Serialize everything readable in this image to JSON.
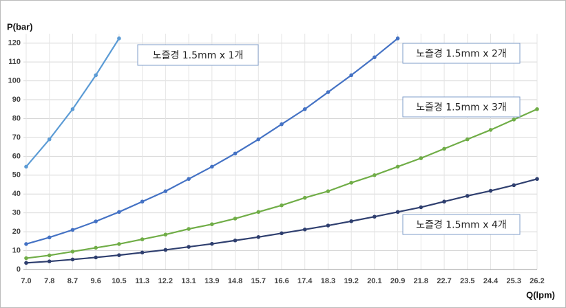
{
  "chart_data": {
    "type": "line",
    "y_label": "P(bar)",
    "x_label": "Q(lpm)",
    "categories": [
      "7.0",
      "7.8",
      "8.7",
      "9.6",
      "10.5",
      "11.3",
      "12.2",
      "13.1",
      "13.9",
      "14.8",
      "15.7",
      "16.6",
      "17.4",
      "18.3",
      "19.2",
      "20.1",
      "20.9",
      "21.8",
      "22.7",
      "23.5",
      "24.4",
      "25.3",
      "26.2"
    ],
    "series": [
      {
        "name": "노즐경 1.5mm x 1개",
        "color": "#5b9bd5",
        "values": [
          54.5,
          69,
          85,
          103,
          122.5,
          null,
          null,
          null,
          null,
          null,
          null,
          null,
          null,
          null,
          null,
          null,
          null,
          null,
          null,
          null,
          null,
          null,
          null
        ]
      },
      {
        "name": "노즐경 1.5mm x 2개",
        "color": "#4472c4",
        "values": [
          13.5,
          17,
          21,
          25.5,
          30.5,
          36,
          41.5,
          48,
          54.5,
          61.5,
          69,
          77,
          85,
          94,
          103,
          112.5,
          122.5,
          null,
          null,
          null,
          null,
          null,
          null
        ]
      },
      {
        "name": "노즐경 1.5mm x 3개",
        "color": "#70ad47",
        "values": [
          6,
          7.5,
          9.5,
          11.5,
          13.5,
          16,
          18.5,
          21.5,
          24,
          27,
          30.5,
          34,
          38,
          41.5,
          46,
          50,
          54.5,
          59,
          64,
          69,
          74,
          79.5,
          85
        ]
      },
      {
        "name": "노즐경 1.5mm x 4개",
        "color": "#2f3f6f",
        "values": [
          3.5,
          4.3,
          5.3,
          6.4,
          7.6,
          9,
          10.4,
          12,
          13.6,
          15.4,
          17.2,
          19.2,
          21.2,
          23.3,
          25.6,
          28,
          30.5,
          33,
          36,
          39,
          41.7,
          44.7,
          48
        ]
      }
    ],
    "ylim": [
      0,
      125
    ],
    "yticks": [
      0,
      10,
      20,
      30,
      40,
      50,
      60,
      70,
      80,
      90,
      100,
      110,
      120
    ],
    "grid": true
  }
}
